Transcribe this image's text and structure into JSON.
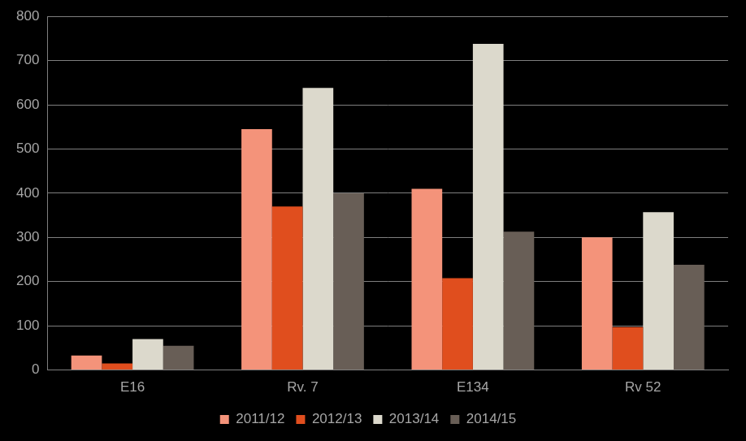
{
  "chart_data": {
    "type": "bar",
    "categories": [
      "E16",
      "Rv. 7",
      "E134",
      "Rv 52"
    ],
    "series": [
      {
        "name": "2011/12",
        "color": "#f4937a",
        "values": [
          33,
          545,
          410,
          300
        ]
      },
      {
        "name": "2012/13",
        "color": "#e04e1e",
        "values": [
          15,
          370,
          208,
          97
        ]
      },
      {
        "name": "2013/14",
        "color": "#dcd9cc",
        "values": [
          70,
          638,
          738,
          357
        ]
      },
      {
        "name": "2014/15",
        "color": "#685e56",
        "values": [
          55,
          400,
          313,
          238
        ]
      }
    ],
    "ylim": [
      0,
      800
    ],
    "yticks": [
      0,
      100,
      200,
      300,
      400,
      500,
      600,
      700,
      800
    ],
    "grid": true,
    "legend": "bottom"
  }
}
